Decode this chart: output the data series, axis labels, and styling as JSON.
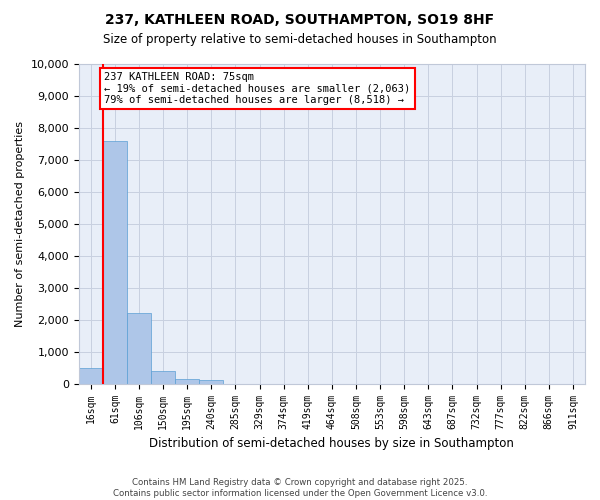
{
  "title1": "237, KATHLEEN ROAD, SOUTHAMPTON, SO19 8HF",
  "title2": "Size of property relative to semi-detached houses in Southampton",
  "xlabel": "Distribution of semi-detached houses by size in Southampton",
  "ylabel": "Number of semi-detached properties",
  "bins": [
    "16sqm",
    "61sqm",
    "106sqm",
    "150sqm",
    "195sqm",
    "240sqm",
    "285sqm",
    "329sqm",
    "374sqm",
    "419sqm",
    "464sqm",
    "508sqm",
    "553sqm",
    "598sqm",
    "643sqm",
    "687sqm",
    "732sqm",
    "777sqm",
    "822sqm",
    "866sqm",
    "911sqm"
  ],
  "values": [
    500,
    7600,
    2200,
    400,
    150,
    100,
    0,
    0,
    0,
    0,
    0,
    0,
    0,
    0,
    0,
    0,
    0,
    0,
    0,
    0,
    0
  ],
  "bar_color": "#aec6e8",
  "bar_edge_color": "#5a9fd4",
  "property_label": "237 KATHLEEN ROAD: 75sqm",
  "pct_smaller": "19%",
  "count_smaller": "2,063",
  "pct_larger": "79%",
  "count_larger": "8,518",
  "ylim": [
    0,
    10000
  ],
  "yticks": [
    0,
    1000,
    2000,
    3000,
    4000,
    5000,
    6000,
    7000,
    8000,
    9000,
    10000
  ],
  "footnote1": "Contains HM Land Registry data © Crown copyright and database right 2025.",
  "footnote2": "Contains public sector information licensed under the Open Government Licence v3.0.",
  "bg_color": "#e8eef8"
}
